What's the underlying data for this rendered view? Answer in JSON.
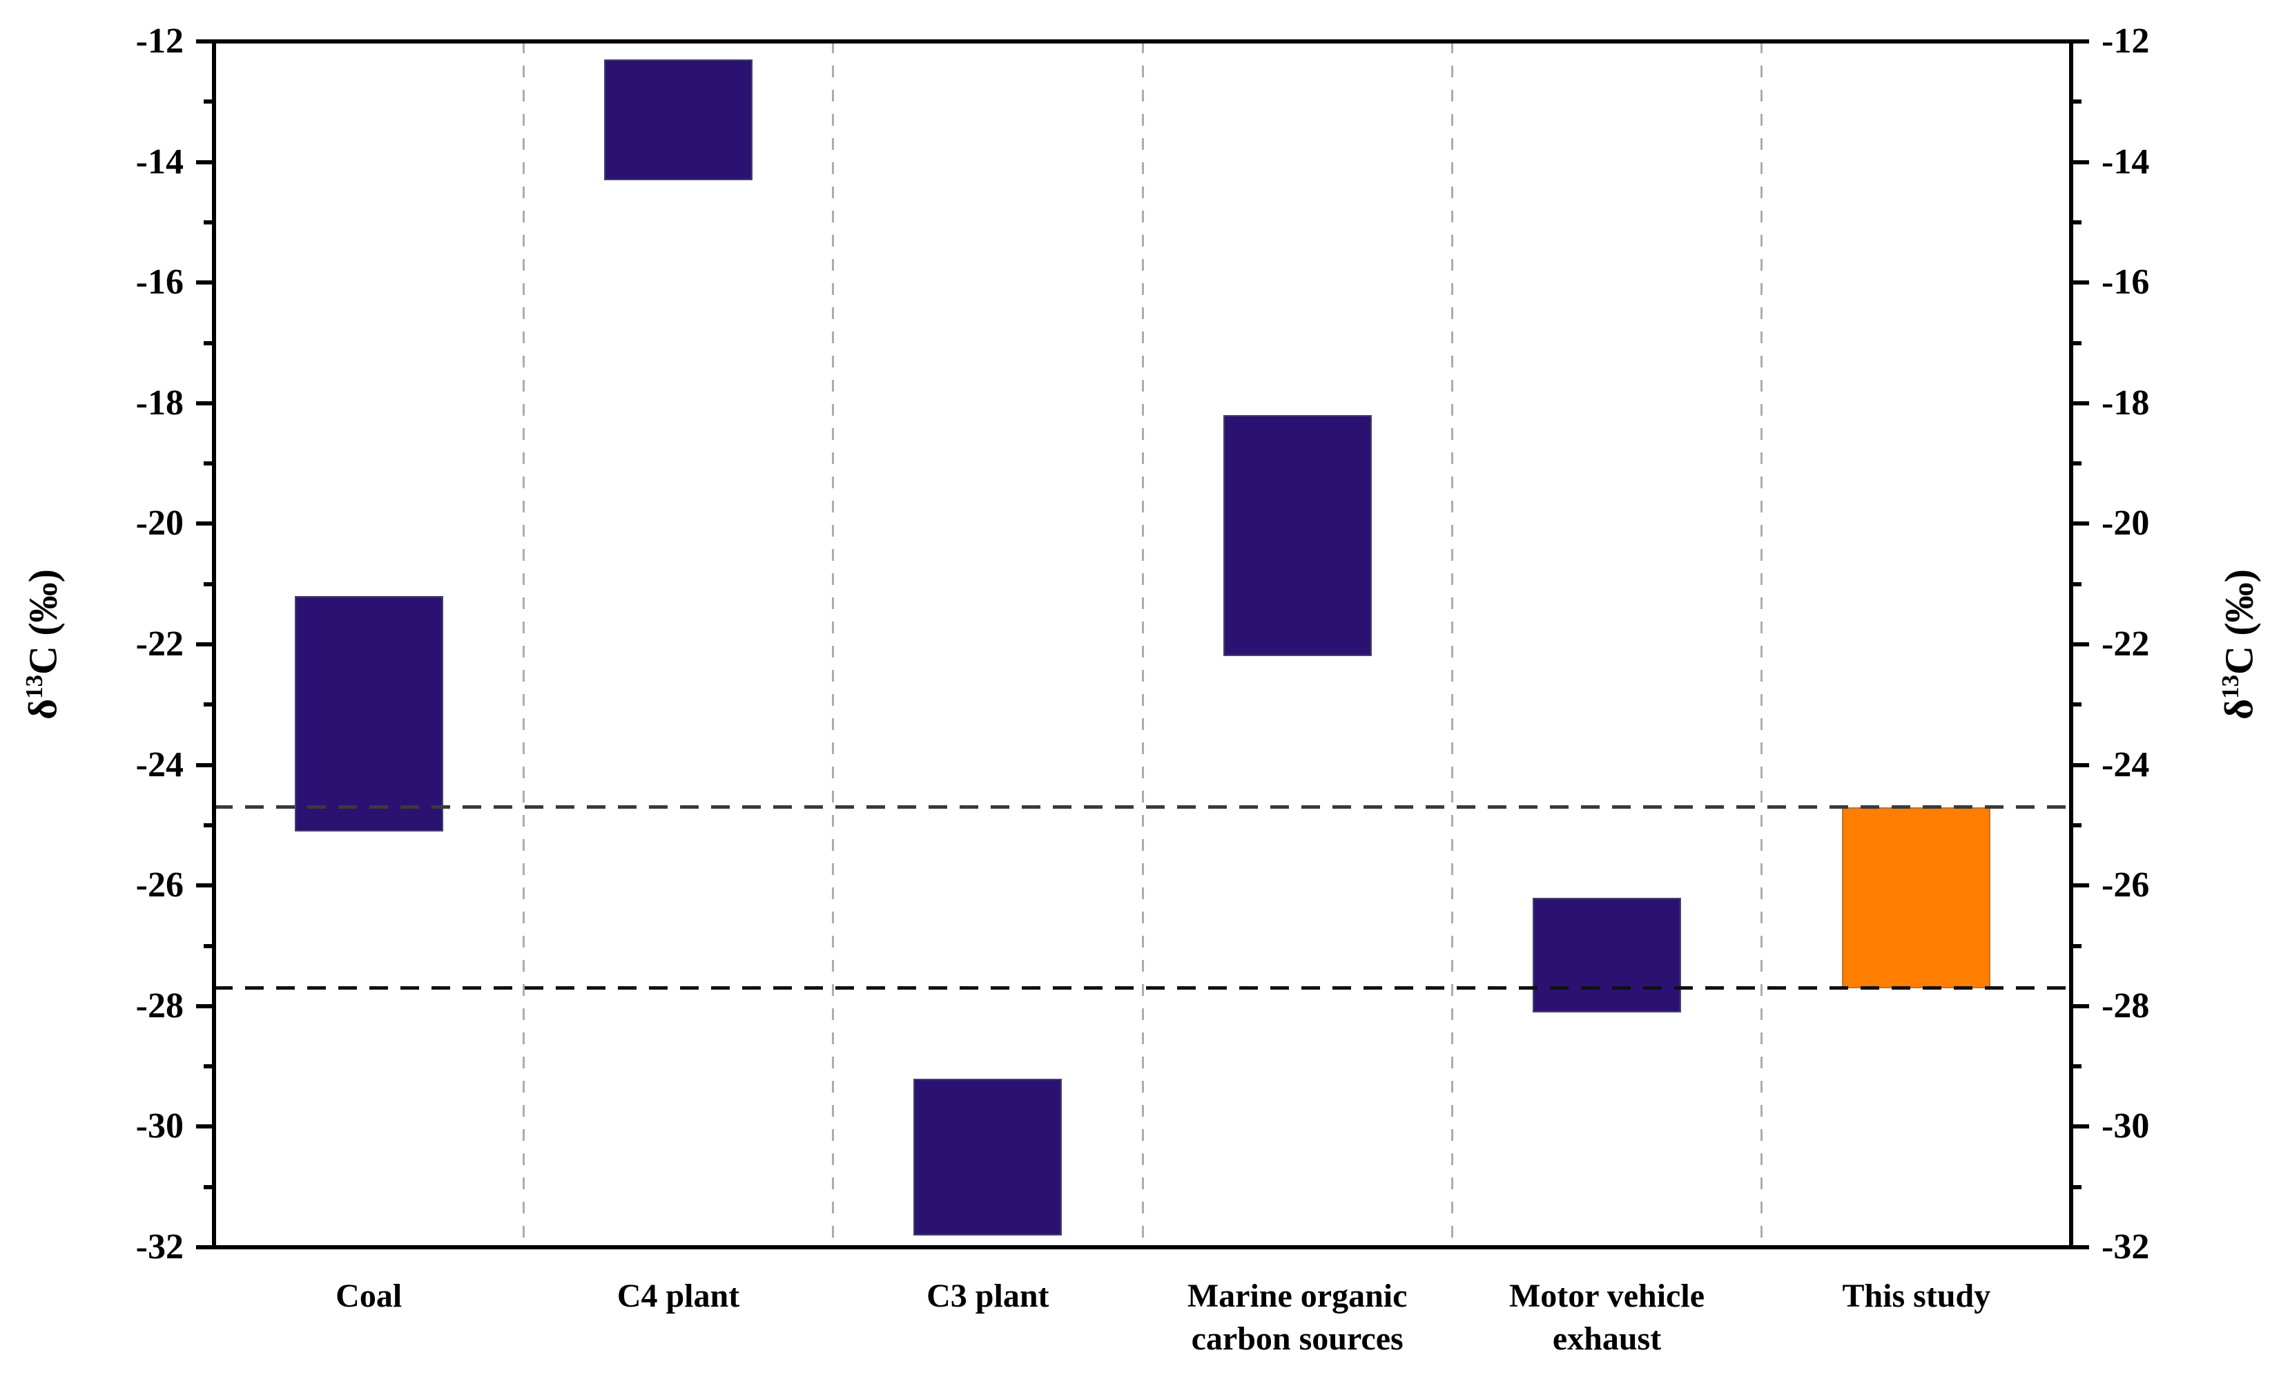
{
  "figure": {
    "background": "#ffffff",
    "axis_color": "#000000",
    "axis_title": {
      "prefix": "δ",
      "sup": "13",
      "suffix": "C (‰)"
    }
  },
  "chart_data": {
    "type": "bar",
    "subtype": "floating-range-bars",
    "title": "",
    "xlabel": "",
    "ylabel": "δ13C (‰)",
    "ylabel_right": "δ13C (‰)",
    "ylim": [
      -12,
      -32
    ],
    "categories": [
      [
        "Coal"
      ],
      [
        "C4 plant"
      ],
      [
        "C3 plant"
      ],
      [
        "Marine organic",
        "carbon sources"
      ],
      [
        "Motor vehicle",
        "exhaust"
      ],
      [
        "This study"
      ]
    ],
    "series": [
      {
        "name": "Coal",
        "range": [
          -21.2,
          -25.1
        ],
        "color": "#2B1272"
      },
      {
        "name": "C4 plant",
        "range": [
          -12.3,
          -14.3
        ],
        "color": "#2B1272"
      },
      {
        "name": "C3 plant",
        "range": [
          -29.2,
          -31.8
        ],
        "color": "#2B1272"
      },
      {
        "name": "Marine organic carbon sources",
        "range": [
          -18.2,
          -22.2
        ],
        "color": "#2B1272"
      },
      {
        "name": "Motor vehicle exhaust",
        "range": [
          -26.2,
          -28.1
        ],
        "color": "#2B1272"
      },
      {
        "name": "This study",
        "range": [
          -24.7,
          -27.7
        ],
        "color": "#FF7E00",
        "highlight": true
      }
    ],
    "ytick_labels": [
      "-12",
      "-14",
      "-16",
      "-18",
      "-20",
      "-22",
      "-24",
      "-26",
      "-28",
      "-30",
      "-32"
    ],
    "yticks_major": [
      -12,
      -14,
      -16,
      -18,
      -20,
      -22,
      -24,
      -26,
      -28,
      -30,
      -32
    ],
    "yticks_minor": [
      -13,
      -15,
      -17,
      -19,
      -21,
      -23,
      -25,
      -27,
      -29,
      -31
    ],
    "reference_lines": [
      {
        "value": -24.7,
        "style": "dashed",
        "color": "#3a3a3a"
      },
      {
        "value": -27.7,
        "style": "dashed",
        "color": "#111111"
      }
    ],
    "grid": {
      "vertical_dashed_separators": true,
      "color": "#acacac",
      "legend": "none"
    },
    "colors": {
      "default": "#2B1272",
      "highlight": "#FF7E00"
    }
  }
}
